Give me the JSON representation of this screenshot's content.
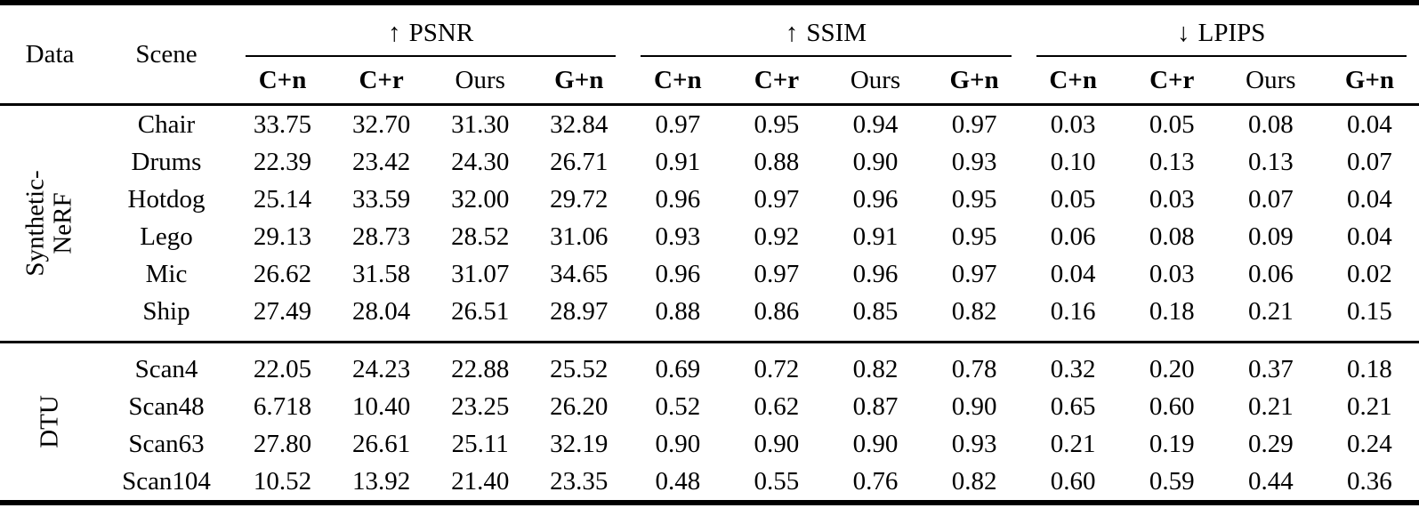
{
  "page": {
    "background": "#ffffff",
    "text_color": "#000000",
    "rule_color": "#000000"
  },
  "table": {
    "data_header": "Data",
    "scene_header": "Scene",
    "groups": [
      {
        "id": "psnr",
        "arrow": "↑",
        "arrow_meaning": "higher-is-better",
        "label": "PSNR"
      },
      {
        "id": "ssim",
        "arrow": "↑",
        "arrow_meaning": "higher-is-better",
        "label": "SSIM"
      },
      {
        "id": "lpips",
        "arrow": "↓",
        "arrow_meaning": "lower-is-better",
        "label": "LPIPS"
      }
    ],
    "sub_headers": [
      {
        "label": "C+n",
        "bold": true
      },
      {
        "label": "C+r",
        "bold": true
      },
      {
        "label": "Ours",
        "bold": false
      },
      {
        "label": "G+n",
        "bold": true
      }
    ],
    "row_groups": [
      {
        "id": "synthetic-nerf",
        "label": "Synthetic-\nNeRF",
        "rows": [
          {
            "scene": "Chair",
            "values": [
              "33.75",
              "32.70",
              "31.30",
              "32.84",
              "0.97",
              "0.95",
              "0.94",
              "0.97",
              "0.03",
              "0.05",
              "0.08",
              "0.04"
            ]
          },
          {
            "scene": "Drums",
            "values": [
              "22.39",
              "23.42",
              "24.30",
              "26.71",
              "0.91",
              "0.88",
              "0.90",
              "0.93",
              "0.10",
              "0.13",
              "0.13",
              "0.07"
            ]
          },
          {
            "scene": "Hotdog",
            "values": [
              "25.14",
              "33.59",
              "32.00",
              "29.72",
              "0.96",
              "0.97",
              "0.96",
              "0.95",
              "0.05",
              "0.03",
              "0.07",
              "0.04"
            ]
          },
          {
            "scene": "Lego",
            "values": [
              "29.13",
              "28.73",
              "28.52",
              "31.06",
              "0.93",
              "0.92",
              "0.91",
              "0.95",
              "0.06",
              "0.08",
              "0.09",
              "0.04"
            ]
          },
          {
            "scene": "Mic",
            "values": [
              "26.62",
              "31.58",
              "31.07",
              "34.65",
              "0.96",
              "0.97",
              "0.96",
              "0.97",
              "0.04",
              "0.03",
              "0.06",
              "0.02"
            ]
          },
          {
            "scene": "Ship",
            "values": [
              "27.49",
              "28.04",
              "26.51",
              "28.97",
              "0.88",
              "0.86",
              "0.85",
              "0.82",
              "0.16",
              "0.18",
              "0.21",
              "0.15"
            ]
          }
        ]
      },
      {
        "id": "dtu",
        "label": "DTU",
        "rows": [
          {
            "scene": "Scan4",
            "values": [
              "22.05",
              "24.23",
              "22.88",
              "25.52",
              "0.69",
              "0.72",
              "0.82",
              "0.78",
              "0.32",
              "0.20",
              "0.37",
              "0.18"
            ]
          },
          {
            "scene": "Scan48",
            "values": [
              "6.718",
              "10.40",
              "23.25",
              "26.20",
              "0.52",
              "0.62",
              "0.87",
              "0.90",
              "0.65",
              "0.60",
              "0.21",
              "0.21"
            ]
          },
          {
            "scene": "Scan63",
            "values": [
              "27.80",
              "26.61",
              "25.11",
              "32.19",
              "0.90",
              "0.90",
              "0.90",
              "0.93",
              "0.21",
              "0.19",
              "0.29",
              "0.24"
            ]
          },
          {
            "scene": "Scan104",
            "values": [
              "10.52",
              "13.92",
              "21.40",
              "23.35",
              "0.48",
              "0.55",
              "0.76",
              "0.82",
              "0.60",
              "0.59",
              "0.44",
              "0.36"
            ]
          }
        ]
      }
    ]
  }
}
